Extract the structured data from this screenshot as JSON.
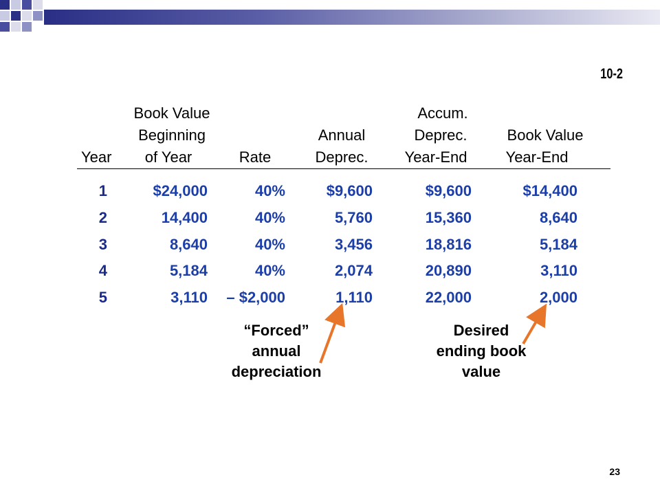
{
  "slide_code": "10-2",
  "page_number": "23",
  "colors": {
    "accent_blue": "#1c3ea8",
    "banner_dark": "#2a2f86",
    "arrow": "#e8762a"
  },
  "headers": {
    "year": "Year",
    "book_value_begin": [
      "Book Value",
      "Beginning",
      "of Year"
    ],
    "rate": "Rate",
    "annual_deprec": [
      "Annual",
      "Deprec."
    ],
    "accum_deprec": [
      "Accum.",
      "Deprec.",
      "Year-End"
    ],
    "book_value_end": [
      "Book Value",
      "Year-End"
    ]
  },
  "rows": [
    {
      "year": "1",
      "bv_begin": "$24,000",
      "rate": "40%",
      "annual": "$9,600",
      "accum": "$9,600",
      "bv_end": "$14,400"
    },
    {
      "year": "2",
      "bv_begin": "14,400",
      "rate": "40%",
      "annual": "5,760",
      "accum": "15,360",
      "bv_end": "8,640"
    },
    {
      "year": "3",
      "bv_begin": "8,640",
      "rate": "40%",
      "annual": "3,456",
      "accum": "18,816",
      "bv_end": "5,184"
    },
    {
      "year": "4",
      "bv_begin": "5,184",
      "rate": "40%",
      "annual": "2,074",
      "accum": "20,890",
      "bv_end": "3,110"
    },
    {
      "year": "5",
      "bv_begin": "3,110",
      "rate": "– $2,000",
      "annual": "1,110",
      "accum": "22,000",
      "bv_end": "2,000"
    }
  ],
  "annotations": {
    "forced": [
      "“Forced”",
      "annual",
      "depreciation"
    ],
    "desired": [
      "Desired",
      "ending book",
      "value"
    ]
  }
}
